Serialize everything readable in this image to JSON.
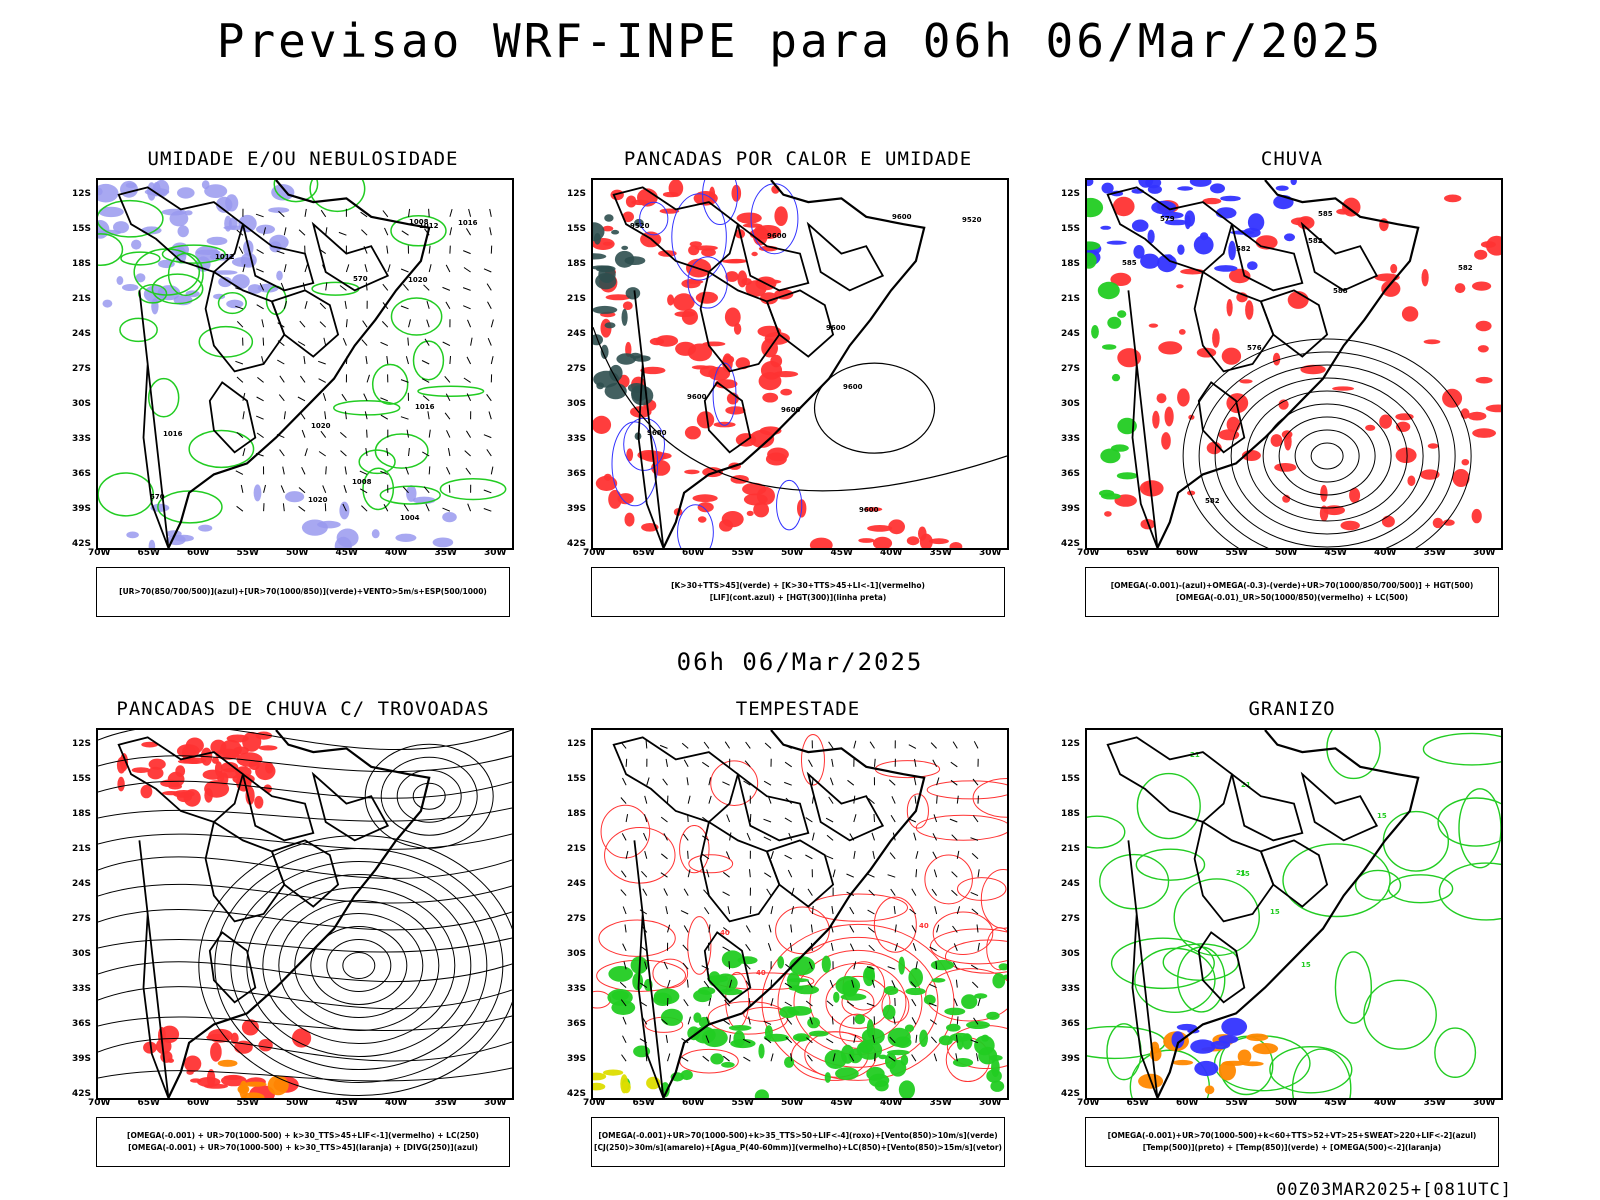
{
  "header": {
    "title": "Previsao WRF-INPE  para 06h 06/Mar/2025"
  },
  "mid_date": "06h 06/Mar/2025",
  "footer": "00Z03MAR2025+[081UTC]",
  "axes": {
    "lat_labels": [
      "12S",
      "15S",
      "18S",
      "21S",
      "24S",
      "27S",
      "30S",
      "33S",
      "36S",
      "39S",
      "42S"
    ],
    "lon_labels": [
      "70W",
      "65W",
      "60W",
      "55W",
      "50W",
      "45W",
      "40W",
      "35W",
      "30W"
    ]
  },
  "colors": {
    "blue": "#3333ff",
    "lilac": "#9999ee",
    "green": "#22cc22",
    "red": "#ff3333",
    "darkgreen": "#2f4f4f",
    "orange": "#ff8800",
    "yellow": "#dddd00",
    "purple": "#9900cc"
  },
  "panels": [
    {
      "title": "UMIDADE E/OU NEBULOSIDADE",
      "legend": [
        "[UR>70(850/700/500)](azul)+[UR>70(1000/850)](verde)+VENTO>5m/s+ESP(500/1000)"
      ],
      "contour_labels": [
        "1012",
        "1012",
        "1016",
        "1016",
        "1020",
        "1020",
        "1008",
        "1004",
        "1008",
        "1016",
        "1020",
        "570",
        "570"
      ]
    },
    {
      "title": "PANCADAS POR CALOR E UMIDADE",
      "legend": [
        "[K>30+TTS>45](verde) + [K>30+TTS>45+LI<-1](vermelho)",
        "[LIF](cont.azul) + [HGT(300)](linha preta)"
      ],
      "contour_labels": [
        "9600",
        "9600",
        "9600",
        "9600",
        "9520",
        "9600",
        "9520",
        "9680",
        "9600",
        "9600"
      ]
    },
    {
      "title": "CHUVA",
      "legend": [
        "[OMEGA(-0.001)-(azul)+OMEGA(-0.3)-(verde)+UR>70(1000/850/700/500)] + HGT(500)",
        "[OMEGA(-0.01)_UR>50(1000/850)(vermelho) + LC(500)"
      ],
      "contour_labels": [
        "582",
        "585",
        "582",
        "582",
        "582",
        "585",
        "579",
        "576",
        "588"
      ]
    },
    {
      "title": "PANCADAS DE CHUVA C/ TROVOADAS",
      "legend": [
        "[OMEGA(-0.001) + UR>70(1000-500) + k>30_TTS>45+LIF<-1](vermelho) + LC(250)",
        "[OMEGA(-0.001) + UR>70(1000-500) + k>30_TTS>45](laranja) + [DIVG(250)](azul)"
      ],
      "contour_labels": []
    },
    {
      "title": "TEMPESTADE",
      "legend": [
        "[OMEGA(-0.001)+UR>70(1000-500)+k>35_TTS>50+LIF<-4](roxo)+[Vento(850)>10m/s](verde)",
        "[CJ(250)>30m/s](amarelo)+[Agua_P(40-60mm)](vermelho)+LC(850)+[Vento(850)>15m/s](vetor)"
      ],
      "contour_labels": [
        "40",
        "40",
        "40"
      ]
    },
    {
      "title": "GRANIZO",
      "legend": [
        "[OMEGA(-0.001)+UR>70(1000-500)+k<60+TTS>52+VT>25+SWEAT>220+LIF<-2](azul)",
        "[Temp(500)](preto) + [Temp(850)](verde) + [OMEGA(500)<-2](laranja)"
      ],
      "contour_labels": [
        "15",
        "15",
        "21",
        "21",
        "15",
        "15",
        "21"
      ]
    }
  ]
}
